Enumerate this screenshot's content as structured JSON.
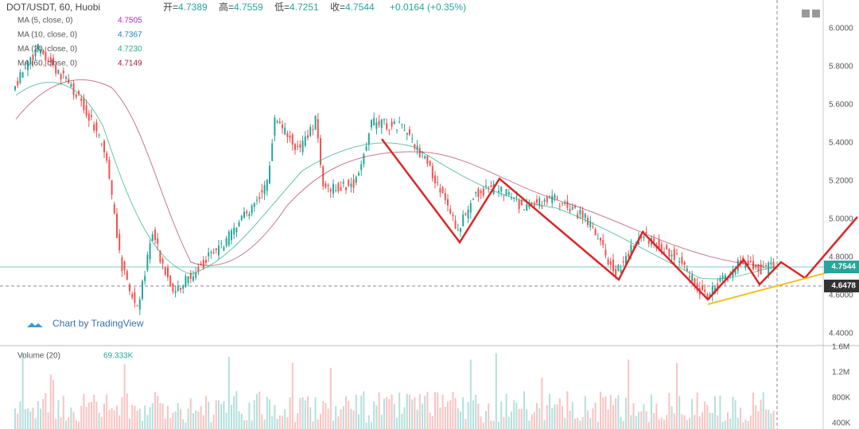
{
  "header": {
    "symbol": "DOT/USDT, 60, Huobi",
    "ohlc": [
      {
        "key": "开=",
        "value": "4.7389"
      },
      {
        "key": "高=",
        "value": "4.7559"
      },
      {
        "key": "低=",
        "value": "4.7251"
      },
      {
        "key": "收=",
        "value": "4.7544"
      }
    ],
    "change": "+0.0164 (+0.35%)"
  },
  "indicators": [
    {
      "label": "MA (5, close, 0)",
      "value": "4.7505",
      "color": "#d020c0"
    },
    {
      "label": "MA (10, close, 0)",
      "value": "4.7367",
      "color": "#2080c8"
    },
    {
      "label": "MA (20, close, 0)",
      "value": "4.7230",
      "color": "#20b080"
    },
    {
      "label": "MA (60, close, 0)",
      "value": "4.7149",
      "color": "#a02040"
    }
  ],
  "price_axis": [
    "6.0000",
    "5.8000",
    "5.6000",
    "5.4000",
    "5.2000",
    "5.0000",
    "4.8000",
    "4.6000",
    "4.4000"
  ],
  "price_tags": {
    "last": "4.7544",
    "level": "4.6478"
  },
  "watermark": "Chart by TradingView",
  "volume": {
    "label": "Volume (20)",
    "value": "69.333K",
    "axis": [
      "1.6M",
      "1.2M",
      "800K",
      "400K"
    ]
  }
}
